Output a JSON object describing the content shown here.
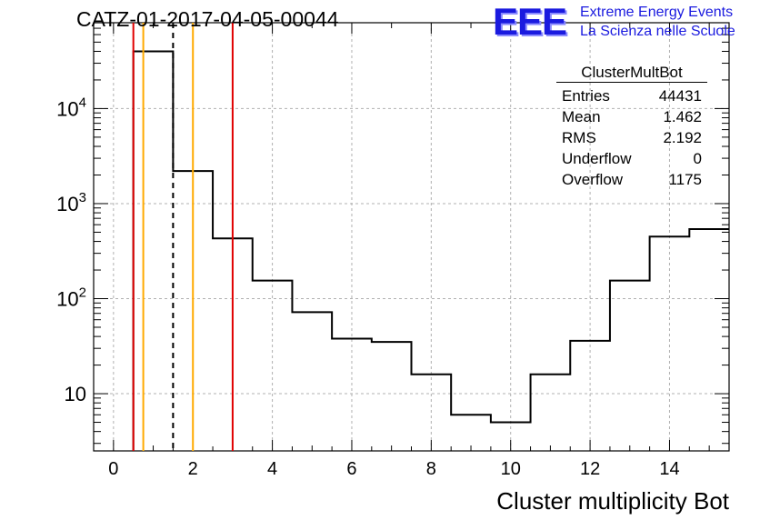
{
  "header": {
    "title": "CATZ-01-2017-04-05-00044",
    "logo": "EEE",
    "logo_line1": "Extreme Energy Events",
    "logo_line2": "La Scienza nelle Scuole"
  },
  "stats": {
    "name": "ClusterMultBot",
    "rows": [
      {
        "label": "Entries",
        "value": "44431"
      },
      {
        "label": "Mean",
        "value": "1.462"
      },
      {
        "label": "RMS",
        "value": "2.192"
      },
      {
        "label": "Underflow",
        "value": "0"
      },
      {
        "label": "Overflow",
        "value": "1175"
      }
    ]
  },
  "chart_data": {
    "type": "histogram",
    "xlabel": "Cluster multiplicity Bot",
    "ylabel": "",
    "xlim": [
      -0.5,
      15.5
    ],
    "ylim": [
      2.5,
      80000
    ],
    "yscale": "log",
    "grid": true,
    "bin_width": 1,
    "bins_low_edge": [
      0.5,
      1.5,
      2.5,
      3.5,
      4.5,
      5.5,
      6.5,
      7.5,
      8.5,
      9.5,
      10.5,
      11.5,
      12.5,
      13.5,
      14.5
    ],
    "counts": [
      40000,
      2200,
      430,
      155,
      72,
      38,
      35,
      16,
      6,
      5,
      16,
      36,
      155,
      450,
      540
    ],
    "x_ticks": [
      0,
      2,
      4,
      6,
      8,
      10,
      12,
      14
    ],
    "y_tick_labels": [
      {
        "value": 10,
        "base": "10",
        "exp": ""
      },
      {
        "value": 100,
        "base": "10",
        "exp": "2"
      },
      {
        "value": 1000,
        "base": "10",
        "exp": "3"
      },
      {
        "value": 10000,
        "base": "10",
        "exp": "4"
      }
    ],
    "vlines": [
      {
        "x": 0.5,
        "color": "#e00000",
        "style": "solid"
      },
      {
        "x": 0.75,
        "color": "#ffaa00",
        "style": "solid"
      },
      {
        "x": 1.5,
        "color": "#000000",
        "style": "dashed"
      },
      {
        "x": 2.0,
        "color": "#ffaa00",
        "style": "solid"
      },
      {
        "x": 3.0,
        "color": "#e00000",
        "style": "solid"
      }
    ]
  }
}
